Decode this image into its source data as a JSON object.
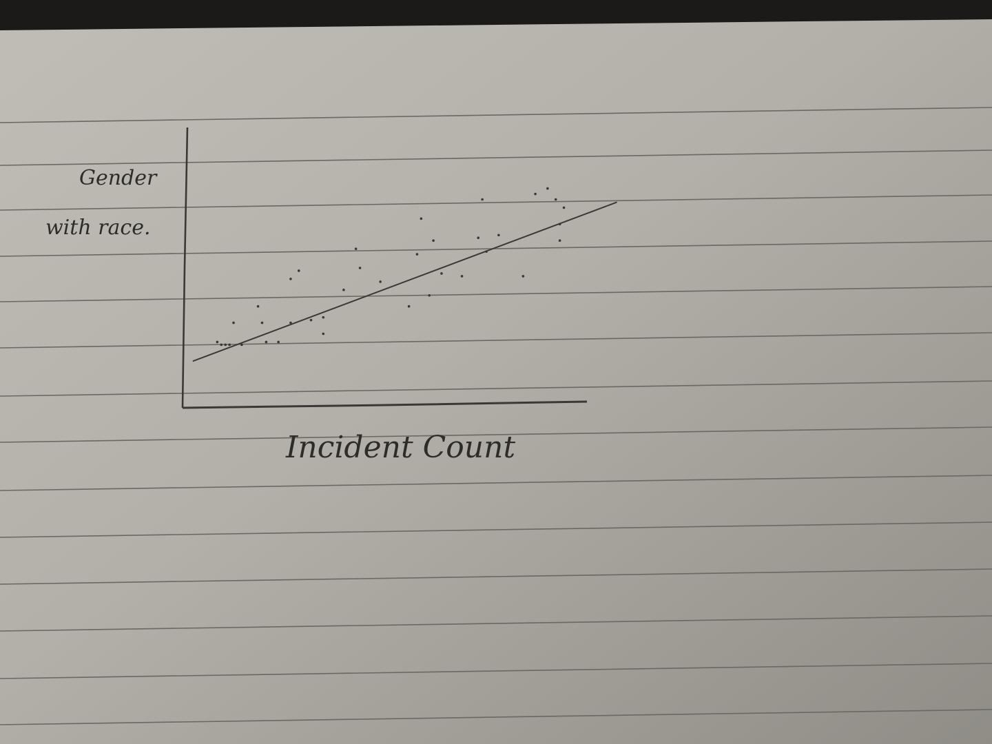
{
  "chart_data": {
    "type": "scatter",
    "title": "",
    "ylabel_lines": [
      "Gender",
      "with race."
    ],
    "xlabel": "Incident Count",
    "grid": false,
    "legend": "none",
    "xlim": [
      0,
      10
    ],
    "ylim": [
      0,
      10
    ],
    "points": [
      {
        "x": 0.8,
        "y": 2.3
      },
      {
        "x": 0.9,
        "y": 2.2
      },
      {
        "x": 1.0,
        "y": 2.2
      },
      {
        "x": 1.1,
        "y": 2.2
      },
      {
        "x": 1.4,
        "y": 2.2
      },
      {
        "x": 1.2,
        "y": 3.0
      },
      {
        "x": 1.8,
        "y": 3.6
      },
      {
        "x": 1.9,
        "y": 3.0
      },
      {
        "x": 2.0,
        "y": 2.3
      },
      {
        "x": 2.3,
        "y": 2.3
      },
      {
        "x": 2.6,
        "y": 3.0
      },
      {
        "x": 2.6,
        "y": 4.6
      },
      {
        "x": 2.8,
        "y": 4.9
      },
      {
        "x": 3.1,
        "y": 3.1
      },
      {
        "x": 3.4,
        "y": 3.2
      },
      {
        "x": 3.4,
        "y": 2.6
      },
      {
        "x": 3.9,
        "y": 4.2
      },
      {
        "x": 4.2,
        "y": 5.7
      },
      {
        "x": 4.3,
        "y": 5.0
      },
      {
        "x": 4.8,
        "y": 4.5
      },
      {
        "x": 5.5,
        "y": 3.6
      },
      {
        "x": 5.7,
        "y": 5.5
      },
      {
        "x": 5.8,
        "y": 6.8
      },
      {
        "x": 6.0,
        "y": 4.0
      },
      {
        "x": 6.1,
        "y": 6.0
      },
      {
        "x": 6.3,
        "y": 4.8
      },
      {
        "x": 6.8,
        "y": 4.7
      },
      {
        "x": 7.2,
        "y": 6.1
      },
      {
        "x": 7.3,
        "y": 7.5
      },
      {
        "x": 7.4,
        "y": 5.6
      },
      {
        "x": 7.7,
        "y": 6.2
      },
      {
        "x": 8.3,
        "y": 4.7
      },
      {
        "x": 8.6,
        "y": 7.7
      },
      {
        "x": 8.9,
        "y": 7.9
      },
      {
        "x": 9.1,
        "y": 7.5
      },
      {
        "x": 9.2,
        "y": 6.0
      },
      {
        "x": 9.3,
        "y": 7.2
      },
      {
        "x": 9.2,
        "y": 6.6
      }
    ],
    "trendline": [
      {
        "x": 0.2,
        "y": 1.6
      },
      {
        "x": 10.6,
        "y": 7.4
      }
    ]
  }
}
